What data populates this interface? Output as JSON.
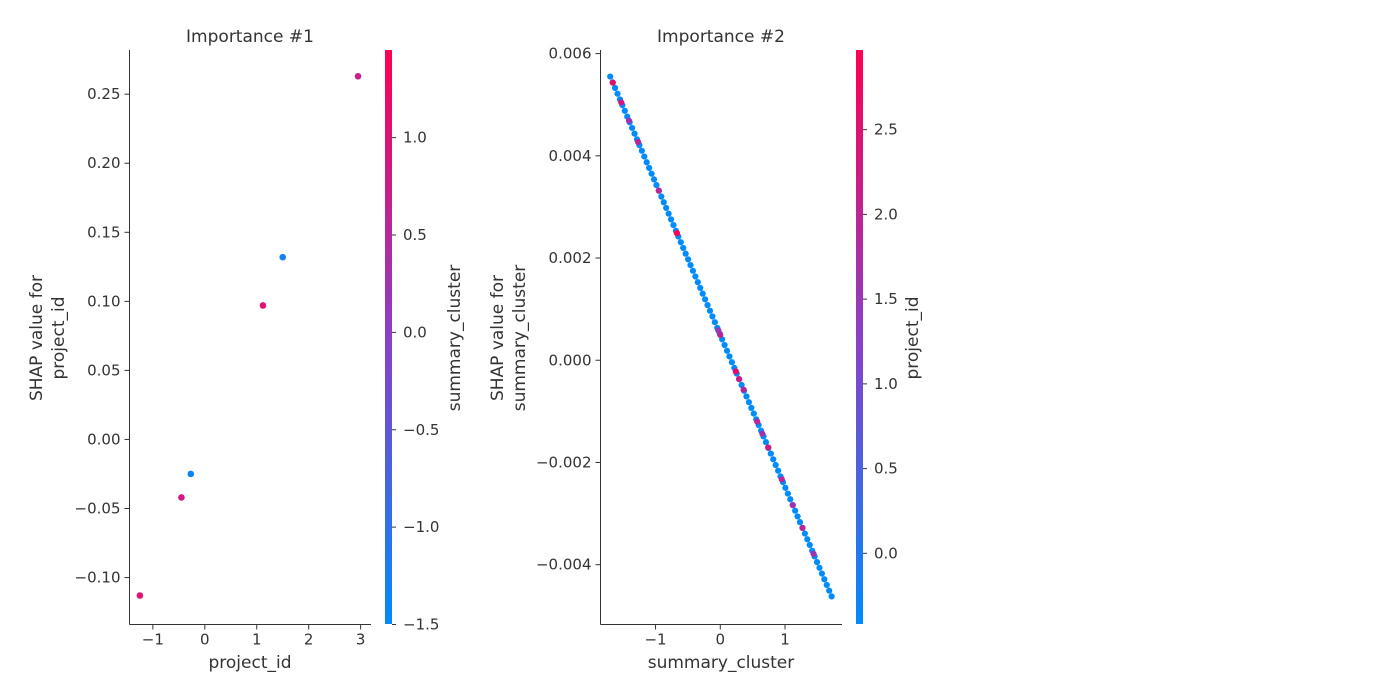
{
  "colors": {
    "low": "#008bfb",
    "mid": "#8c3fc6",
    "high": "#ff0052",
    "axis": "#333333"
  },
  "chart_data": [
    {
      "type": "scatter",
      "title": "Importance #1",
      "xlabel": "project_id",
      "ylabel_lines": [
        "SHAP value for",
        "project_id"
      ],
      "xlim": [
        -1.45,
        3.2
      ],
      "ylim": [
        -0.134,
        0.282
      ],
      "xticks": [
        -1,
        0,
        1,
        2,
        3
      ],
      "yticks": [
        -0.1,
        -0.05,
        0.0,
        0.05,
        0.1,
        0.15,
        0.2,
        0.25
      ],
      "ytick_labels": [
        "−0.10",
        "−0.05",
        "0.00",
        "0.05",
        "0.10",
        "0.15",
        "0.20",
        "0.25"
      ],
      "xtick_labels": [
        "−1",
        "0",
        "1",
        "2",
        "3"
      ],
      "points": [
        {
          "x": -1.25,
          "y": -0.113,
          "c": 0.85
        },
        {
          "x": -0.45,
          "y": -0.042,
          "c": 0.8
        },
        {
          "x": -0.27,
          "y": -0.025,
          "c": 0.05
        },
        {
          "x": 1.12,
          "y": 0.097,
          "c": 0.85
        },
        {
          "x": 1.5,
          "y": 0.132,
          "c": 0.1
        },
        {
          "x": 2.95,
          "y": 0.263,
          "c": 0.75
        }
      ],
      "colorbar": {
        "label": "summary_cluster",
        "range": [
          -1.5,
          1.45
        ],
        "ticks": [
          -1.5,
          -1.0,
          -0.5,
          0.0,
          0.5,
          1.0
        ],
        "tick_labels": [
          "−1.5",
          "−1.0",
          "−0.5",
          "0.0",
          "0.5",
          "1.0"
        ]
      }
    },
    {
      "type": "scatter",
      "title": "Importance #2",
      "xlabel": "summary_cluster",
      "ylabel_lines": [
        "SHAP value for",
        "summary_cluster"
      ],
      "xlim": [
        -1.85,
        1.88
      ],
      "ylim": [
        -0.00517,
        0.00607
      ],
      "xticks": [
        -1,
        0,
        1
      ],
      "xtick_labels": [
        "−1",
        "0",
        "1"
      ],
      "yticks": [
        -0.004,
        -0.002,
        0.0,
        0.002,
        0.004,
        0.006
      ],
      "ytick_labels": [
        "−0.004",
        "−0.002",
        "0.000",
        "0.002",
        "0.004",
        "0.006"
      ],
      "line": {
        "x_start": -1.7,
        "y_start": 0.00555,
        "x_end": 1.72,
        "y_end": -0.00462,
        "count": 92
      },
      "highlight_points": [
        {
          "x": -1.66,
          "c": 0.9
        },
        {
          "x": -1.53,
          "c": 0.8
        },
        {
          "x": -1.41,
          "c": 0.6
        },
        {
          "x": -1.27,
          "c": 0.7
        },
        {
          "x": -0.95,
          "c": 0.7
        },
        {
          "x": -0.67,
          "c": 1.0
        },
        {
          "x": -0.03,
          "c": 0.55
        },
        {
          "x": 0.0,
          "c": 0.7
        },
        {
          "x": 0.24,
          "c": 0.9
        },
        {
          "x": 0.29,
          "c": 0.8
        },
        {
          "x": 0.36,
          "c": 0.7
        },
        {
          "x": 0.57,
          "c": 0.7
        },
        {
          "x": 0.65,
          "c": 0.6
        },
        {
          "x": 0.74,
          "c": 0.8
        },
        {
          "x": 0.95,
          "c": 0.7
        },
        {
          "x": 1.12,
          "c": 0.6
        },
        {
          "x": 1.27,
          "c": 0.7
        },
        {
          "x": 1.44,
          "c": 0.6
        }
      ],
      "colorbar": {
        "label": "project_id",
        "range": [
          -0.42,
          2.97
        ],
        "ticks": [
          0.0,
          0.5,
          1.0,
          1.5,
          2.0,
          2.5
        ],
        "tick_labels": [
          "0.0",
          "0.5",
          "1.0",
          "1.5",
          "2.0",
          "2.5"
        ]
      }
    }
  ]
}
